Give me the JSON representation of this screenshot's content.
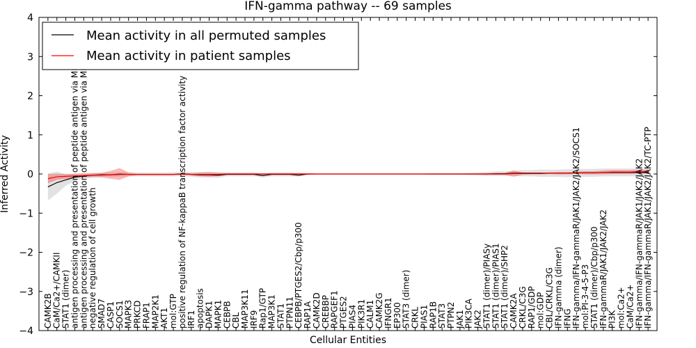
{
  "chart_data": {
    "type": "line",
    "title": "IFN-gamma pathway -- 69 samples",
    "xlabel": "Cellular Entities",
    "ylabel": "Inferred Activity",
    "ylim": [
      -4,
      4
    ],
    "yticks": [
      -4,
      -3,
      -2,
      -1,
      0,
      1,
      2,
      3,
      4
    ],
    "grid": false,
    "legend_position": "top-left",
    "categories": [
      "CAMK2B",
      "CaM/Ca2+/CAMKII",
      "STAT1 (dimer)",
      "antigen processing and presentation of peptide antigen via MHC class I",
      "antigen processing and presentation of peptide antigen via MHC class II",
      "negative regulation of cell growth",
      "SMAD7",
      "CASP1",
      "SOCS1",
      "MAPK3",
      "PRKCD",
      "FRAP1",
      "MAP2K1",
      "AKT1",
      "mol:GTP",
      "positive regulation of NF-kappaB transcription factor activity",
      "IRF1",
      "apoptosis",
      "DAPK1",
      "MAPK1",
      "CEBPB",
      "CBL",
      "MAP3K11",
      "IRF9",
      "Rap1/GTP",
      "MAP3K1",
      "STAT1",
      "PTPN11",
      "CEBPB/PTGES2/Cbp/p300",
      "RAP1A",
      "CAMK2D",
      "CREBBP",
      "RAPGEF1",
      "PTGES2",
      "PIAS4",
      "PIK3R1",
      "CALM1",
      "CAMK2G",
      "IFNGR1",
      "EP300",
      "STAT3 (dimer)",
      "CRKL",
      "PIAS1",
      "RAP1B",
      "STAT3",
      "PTPN2",
      "JAK1",
      "PIK3CA",
      "JAK2",
      "STAT1 (dimer)/PIASy",
      "STAT1 (dimer)/PIAS1",
      "STAT1 (dimer)/SHP2",
      "CAMK2A",
      "CRKL/C3G",
      "RAP1/GDP",
      "mol:GDP",
      "CBL/CRKL/C3G",
      "IFN-gamma (dimer)",
      "IFNG",
      "IFN-gamma/IFN-gammaR/JAK1/JAK2/JAK2/SOCS1",
      "mol:PI-3-4-5-P3",
      "STAT1 (dimer)/Cbp/p300",
      "IFN-gammaR/JAK1/JAK2/JAK2",
      "PI3K",
      "mol:Ca2+",
      "CaM/Ca2+",
      "IFN-gamma/IFN-gammaR/JAK1/JAK2/JAK2",
      "IFN-gamma/IFN-gammaR/JAK1/JAK2/JAK2/TC-PTP"
    ],
    "series": [
      {
        "name": "Mean activity in all permuted samples",
        "color": "#000000",
        "values": [
          -0.33,
          -0.22,
          -0.15,
          -0.08,
          -0.05,
          -0.03,
          -0.02,
          -0.02,
          -0.01,
          -0.01,
          -0.01,
          -0.01,
          -0.01,
          -0.01,
          -0.01,
          0.0,
          -0.01,
          -0.02,
          -0.02,
          -0.03,
          -0.01,
          -0.01,
          -0.01,
          -0.01,
          -0.04,
          -0.01,
          -0.01,
          -0.01,
          -0.03,
          0.0,
          0.0,
          0.0,
          0.0,
          0.0,
          0.0,
          0.0,
          0.0,
          0.0,
          0.0,
          0.0,
          0.0,
          0.0,
          0.0,
          0.0,
          0.0,
          0.0,
          0.0,
          0.0,
          0.0,
          0.0,
          0.01,
          0.01,
          0.02,
          0.02,
          0.02,
          0.02,
          0.02,
          0.02,
          0.02,
          0.03,
          0.03,
          0.03,
          0.04,
          0.04,
          0.04,
          0.04,
          0.04,
          0.04
        ],
        "band": [
          0.35,
          0.28,
          0.15,
          0.1,
          0.07,
          0.06,
          0.05,
          0.05,
          0.05,
          0.05,
          0.05,
          0.05,
          0.05,
          0.05,
          0.05,
          0.05,
          0.06,
          0.07,
          0.07,
          0.07,
          0.05,
          0.05,
          0.05,
          0.05,
          0.05,
          0.05,
          0.05,
          0.05,
          0.04,
          0.02,
          0.01,
          0.01,
          0.01,
          0.01,
          0.01,
          0.01,
          0.01,
          0.01,
          0.01,
          0.01,
          0.01,
          0.01,
          0.01,
          0.02,
          0.02,
          0.02,
          0.02,
          0.03,
          0.04,
          0.05,
          0.06,
          0.06,
          0.07,
          0.08,
          0.08,
          0.09,
          0.09,
          0.09,
          0.1,
          0.1,
          0.1,
          0.1,
          0.1,
          0.1,
          0.1,
          0.1,
          0.1,
          0.1
        ]
      },
      {
        "name": "Mean activity in patient samples",
        "color": "#ff0000",
        "values": [
          -0.12,
          -0.07,
          -0.06,
          -0.05,
          -0.04,
          -0.03,
          -0.03,
          -0.02,
          0.0,
          -0.01,
          -0.01,
          -0.01,
          -0.01,
          -0.01,
          -0.01,
          0.0,
          -0.01,
          -0.01,
          -0.01,
          -0.01,
          0.0,
          0.0,
          0.0,
          0.0,
          0.0,
          0.0,
          0.0,
          0.0,
          0.0,
          0.0,
          0.0,
          0.0,
          0.0,
          0.0,
          0.0,
          0.0,
          0.0,
          0.0,
          0.0,
          0.0,
          0.0,
          0.0,
          0.0,
          0.0,
          0.0,
          0.0,
          0.0,
          0.0,
          0.0,
          0.0,
          0.0,
          0.0,
          0.01,
          0.01,
          0.01,
          0.01,
          0.02,
          0.02,
          0.02,
          0.03,
          0.03,
          0.03,
          0.04,
          0.05,
          0.05,
          0.05,
          0.06,
          0.06
        ],
        "band": [
          0.12,
          0.08,
          0.06,
          0.05,
          0.05,
          0.05,
          0.06,
          0.1,
          0.15,
          0.05,
          0.02,
          0.02,
          0.02,
          0.02,
          0.02,
          0.02,
          0.03,
          0.05,
          0.06,
          0.05,
          0.02,
          0.02,
          0.02,
          0.02,
          0.02,
          0.02,
          0.02,
          0.02,
          0.03,
          0.02,
          0.01,
          0.01,
          0.01,
          0.01,
          0.01,
          0.01,
          0.01,
          0.01,
          0.01,
          0.01,
          0.01,
          0.01,
          0.01,
          0.01,
          0.01,
          0.01,
          0.01,
          0.01,
          0.01,
          0.02,
          0.02,
          0.02,
          0.08,
          0.03,
          0.02,
          0.02,
          0.02,
          0.03,
          0.03,
          0.03,
          0.04,
          0.04,
          0.05,
          0.05,
          0.05,
          0.05,
          0.05,
          0.05
        ]
      }
    ]
  }
}
